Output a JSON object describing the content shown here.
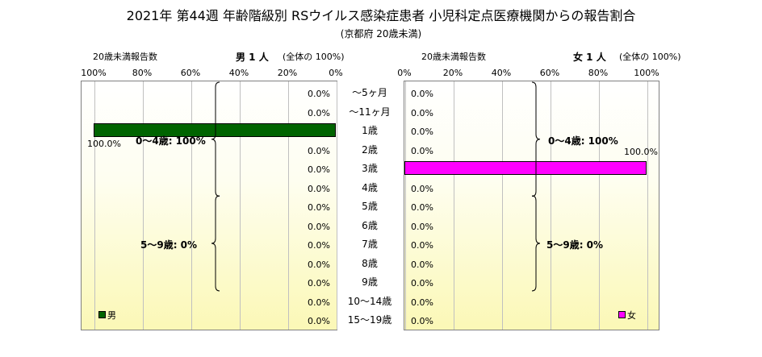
{
  "title": "2021年 第44週 年齢階級別 RSウイルス感染症患者 小児科定点医療機関からの報告割合",
  "subtitle": "(京都府 20歳未満)",
  "colors": {
    "male": "#006400",
    "female": "#ff00ff"
  },
  "chart_data": {
    "type": "bar",
    "orientation": "horizontal-butterfly",
    "categories": [
      "～5ヶ月",
      "～11ヶ月",
      "1歳",
      "2歳",
      "3歳",
      "4歳",
      "5歳",
      "6歳",
      "7歳",
      "8歳",
      "9歳",
      "10～14歳",
      "15～19歳"
    ],
    "xlim": [
      0,
      100
    ],
    "ticks": [
      "100%",
      "80%",
      "60%",
      "40%",
      "20%",
      "0%"
    ],
    "ticks_female": [
      "0%",
      "20%",
      "40%",
      "60%",
      "80%",
      "100%"
    ],
    "grid": true,
    "male": {
      "header_left": "20歳未満報告数",
      "header_main": "男  1 人",
      "header_right": "(全体の  100%)",
      "legend": "男",
      "values": [
        0,
        0,
        100,
        0,
        0,
        0,
        0,
        0,
        0,
        0,
        0,
        0,
        0
      ],
      "labels": [
        "0.0%",
        "0.0%",
        "100.0%",
        "0.0%",
        "0.0%",
        "0.0%",
        "0.0%",
        "0.0%",
        "0.0%",
        "0.0%",
        "0.0%",
        "0.0%",
        "0.0%"
      ],
      "groups": [
        {
          "label": "0～4歳: 100%",
          "from": 0,
          "to": 5
        },
        {
          "label": "5～9歳: 0%",
          "from": 6,
          "to": 10
        }
      ]
    },
    "female": {
      "header_left": "20歳未満報告数",
      "header_main": "女  1 人",
      "header_right": "(全体の  100%)",
      "legend": "女",
      "values": [
        0,
        0,
        0,
        0,
        100,
        0,
        0,
        0,
        0,
        0,
        0,
        0,
        0
      ],
      "labels": [
        "0.0%",
        "0.0%",
        "0.0%",
        "0.0%",
        "100.0%",
        "0.0%",
        "0.0%",
        "0.0%",
        "0.0%",
        "0.0%",
        "0.0%",
        "0.0%",
        "0.0%"
      ],
      "groups": [
        {
          "label": "0～4歳: 100%",
          "from": 0,
          "to": 5
        },
        {
          "label": "5～9歳: 0%",
          "from": 6,
          "to": 10
        }
      ]
    }
  }
}
